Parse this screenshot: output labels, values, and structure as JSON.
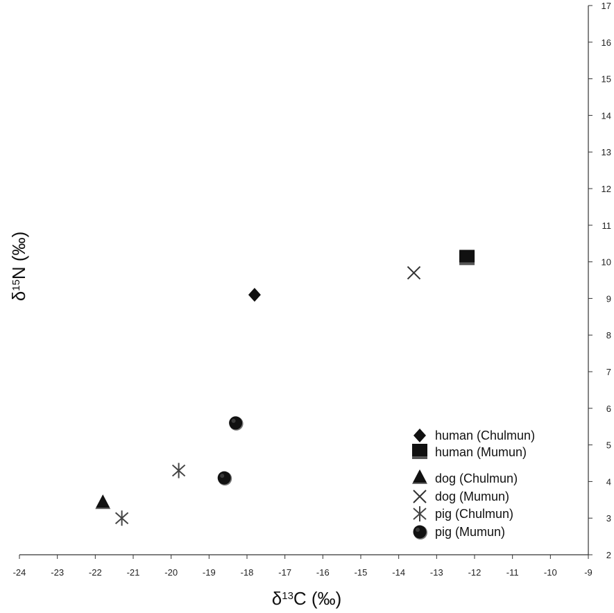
{
  "chart_data": {
    "type": "scatter",
    "xlabel": "δ13C (‰)",
    "ylabel": "δ15N (‰)",
    "xlim": [
      -24,
      -9
    ],
    "ylim": [
      2,
      17
    ],
    "x_ticks": [
      -24,
      -23,
      -22,
      -21,
      -20,
      -19,
      -18,
      -17,
      -16,
      -15,
      -14,
      -13,
      -12,
      -11,
      -10,
      -9
    ],
    "y_ticks": [
      2,
      3,
      4,
      5,
      6,
      7,
      8,
      9,
      10,
      11,
      12,
      13,
      14,
      15,
      16,
      17
    ],
    "y_axis_position": "right",
    "grid": false,
    "legend_position": "bottom-right",
    "series": [
      {
        "name": "human (Chulmun)",
        "marker": "diamond",
        "color": "#111111",
        "points": [
          {
            "x": -17.8,
            "y": 9.1
          }
        ]
      },
      {
        "name": "human (Mumun)",
        "marker": "square",
        "color": "#111111",
        "points": [
          {
            "x": -12.2,
            "y": 10.1
          }
        ]
      },
      {
        "name": "dog (Chulmun)",
        "marker": "triangle",
        "color": "#111111",
        "points": [
          {
            "x": -21.8,
            "y": 3.4
          }
        ]
      },
      {
        "name": "dog (Mumun)",
        "marker": "x",
        "color": "#333333",
        "points": [
          {
            "x": -13.6,
            "y": 9.7
          }
        ]
      },
      {
        "name": "pig (Chulmun)",
        "marker": "asterisk",
        "color": "#444444",
        "points": [
          {
            "x": -21.3,
            "y": 3.0
          },
          {
            "x": -19.8,
            "y": 4.3
          }
        ]
      },
      {
        "name": "pig (Mumun)",
        "marker": "circle",
        "color": "#111111",
        "points": [
          {
            "x": -18.3,
            "y": 5.6
          },
          {
            "x": -18.6,
            "y": 4.1
          }
        ]
      }
    ]
  }
}
